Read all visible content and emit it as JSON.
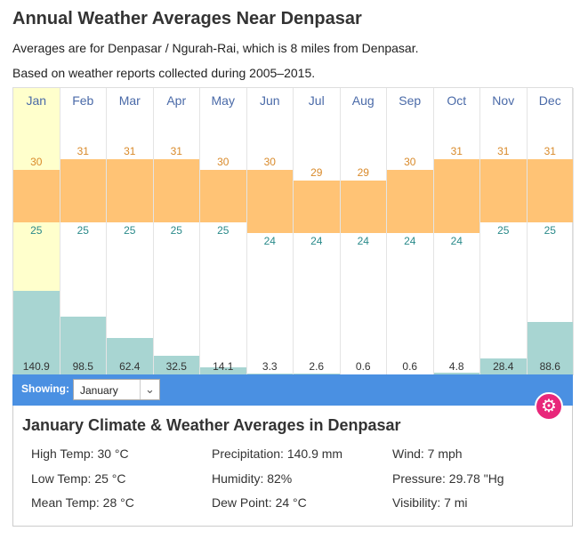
{
  "page": {
    "title": "Annual Weather Averages Near Denpasar",
    "subtitle": "Averages are for Denpasar / Ngurah-Rai, which is 8 miles from Denpasar.",
    "note": "Based on weather reports collected during 2005–2015."
  },
  "chart_data": {
    "type": "bar",
    "categories": [
      "Jan",
      "Feb",
      "Mar",
      "Apr",
      "May",
      "Jun",
      "Jul",
      "Aug",
      "Sep",
      "Oct",
      "Nov",
      "Dec"
    ],
    "series": [
      {
        "name": "High Temp",
        "values": [
          30,
          31,
          31,
          31,
          30,
          30,
          29,
          29,
          30,
          31,
          31,
          31
        ]
      },
      {
        "name": "Low Temp",
        "values": [
          25,
          25,
          25,
          25,
          25,
          24,
          24,
          24,
          24,
          24,
          25,
          25
        ]
      },
      {
        "name": "Precipitation",
        "values": [
          140.9,
          98.5,
          62.4,
          32.5,
          14.1,
          3.3,
          2.6,
          0.6,
          0.6,
          4.8,
          28.4,
          88.6
        ]
      }
    ],
    "selected_index": 0,
    "colors": {
      "temp_band": "#ffc375",
      "precip": "#a8d5d2",
      "selected": "#ffffcc",
      "high": "#d98a2a",
      "low": "#2a8a8a"
    }
  },
  "months_labels": [
    "Jan",
    "Feb",
    "Mar",
    "Apr",
    "May",
    "Jun",
    "Jul",
    "Aug",
    "Sep",
    "Oct",
    "Nov",
    "Dec"
  ],
  "highs_text": [
    "30",
    "31",
    "31",
    "31",
    "30",
    "30",
    "29",
    "29",
    "30",
    "31",
    "31",
    "31"
  ],
  "lows_text": [
    "25",
    "25",
    "25",
    "25",
    "25",
    "24",
    "24",
    "24",
    "24",
    "24",
    "25",
    "25"
  ],
  "precip_text": [
    "140.9",
    "98.5",
    "62.4",
    "32.5",
    "14.1",
    "3.3",
    "2.6",
    "0.6",
    "0.6",
    "4.8",
    "28.4",
    "88.6"
  ],
  "showing": {
    "label": "Showing:",
    "selected": "January"
  },
  "panel": {
    "title": "January Climate & Weather Averages in Denpasar",
    "high_temp": "High Temp: 30 °C",
    "low_temp": "Low Temp: 25 °C",
    "mean_temp": "Mean Temp: 28 °C",
    "precipitation": "Precipitation: 140.9 mm",
    "humidity": "Humidity: 82%",
    "dew_point": "Dew Point: 24 °C",
    "wind": "Wind: 7 mph",
    "pressure": "Pressure: 29.78 \"Hg",
    "visibility": "Visibility: 7 mi"
  },
  "icons": {
    "gear": "gear-icon",
    "dropdown": "chevron-down-icon"
  },
  "colors": {
    "accent": "#4a90e2",
    "gear": "#e8277a"
  }
}
